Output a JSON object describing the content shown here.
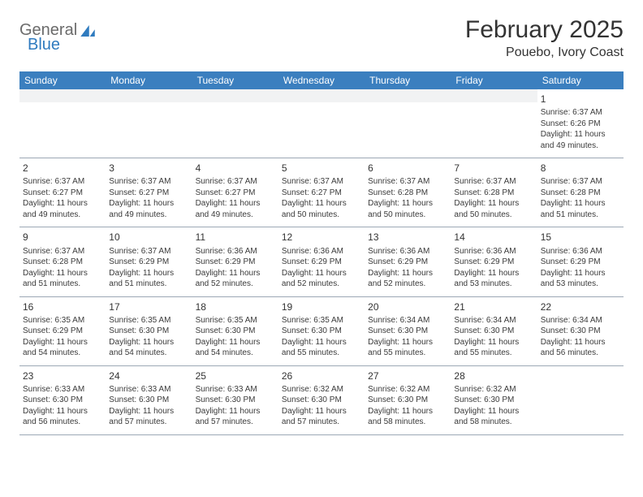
{
  "brand": {
    "word1": "General",
    "word2": "Blue"
  },
  "title": "February 2025",
  "location": "Pouebo, Ivory Coast",
  "colors": {
    "header_bg": "#3b7fbf",
    "header_text": "#ffffff",
    "border": "#9ca8b5",
    "blank_bg": "#f1f2f3",
    "text": "#333333"
  },
  "day_names": [
    "Sunday",
    "Monday",
    "Tuesday",
    "Wednesday",
    "Thursday",
    "Friday",
    "Saturday"
  ],
  "weeks": [
    [
      null,
      null,
      null,
      null,
      null,
      null,
      {
        "n": "1",
        "sunrise": "6:37 AM",
        "sunset": "6:26 PM",
        "day_h": 11,
        "day_m": 49
      }
    ],
    [
      {
        "n": "2",
        "sunrise": "6:37 AM",
        "sunset": "6:27 PM",
        "day_h": 11,
        "day_m": 49
      },
      {
        "n": "3",
        "sunrise": "6:37 AM",
        "sunset": "6:27 PM",
        "day_h": 11,
        "day_m": 49
      },
      {
        "n": "4",
        "sunrise": "6:37 AM",
        "sunset": "6:27 PM",
        "day_h": 11,
        "day_m": 49
      },
      {
        "n": "5",
        "sunrise": "6:37 AM",
        "sunset": "6:27 PM",
        "day_h": 11,
        "day_m": 50
      },
      {
        "n": "6",
        "sunrise": "6:37 AM",
        "sunset": "6:28 PM",
        "day_h": 11,
        "day_m": 50
      },
      {
        "n": "7",
        "sunrise": "6:37 AM",
        "sunset": "6:28 PM",
        "day_h": 11,
        "day_m": 50
      },
      {
        "n": "8",
        "sunrise": "6:37 AM",
        "sunset": "6:28 PM",
        "day_h": 11,
        "day_m": 51
      }
    ],
    [
      {
        "n": "9",
        "sunrise": "6:37 AM",
        "sunset": "6:28 PM",
        "day_h": 11,
        "day_m": 51
      },
      {
        "n": "10",
        "sunrise": "6:37 AM",
        "sunset": "6:29 PM",
        "day_h": 11,
        "day_m": 51
      },
      {
        "n": "11",
        "sunrise": "6:36 AM",
        "sunset": "6:29 PM",
        "day_h": 11,
        "day_m": 52
      },
      {
        "n": "12",
        "sunrise": "6:36 AM",
        "sunset": "6:29 PM",
        "day_h": 11,
        "day_m": 52
      },
      {
        "n": "13",
        "sunrise": "6:36 AM",
        "sunset": "6:29 PM",
        "day_h": 11,
        "day_m": 52
      },
      {
        "n": "14",
        "sunrise": "6:36 AM",
        "sunset": "6:29 PM",
        "day_h": 11,
        "day_m": 53
      },
      {
        "n": "15",
        "sunrise": "6:36 AM",
        "sunset": "6:29 PM",
        "day_h": 11,
        "day_m": 53
      }
    ],
    [
      {
        "n": "16",
        "sunrise": "6:35 AM",
        "sunset": "6:29 PM",
        "day_h": 11,
        "day_m": 54
      },
      {
        "n": "17",
        "sunrise": "6:35 AM",
        "sunset": "6:30 PM",
        "day_h": 11,
        "day_m": 54
      },
      {
        "n": "18",
        "sunrise": "6:35 AM",
        "sunset": "6:30 PM",
        "day_h": 11,
        "day_m": 54
      },
      {
        "n": "19",
        "sunrise": "6:35 AM",
        "sunset": "6:30 PM",
        "day_h": 11,
        "day_m": 55
      },
      {
        "n": "20",
        "sunrise": "6:34 AM",
        "sunset": "6:30 PM",
        "day_h": 11,
        "day_m": 55
      },
      {
        "n": "21",
        "sunrise": "6:34 AM",
        "sunset": "6:30 PM",
        "day_h": 11,
        "day_m": 55
      },
      {
        "n": "22",
        "sunrise": "6:34 AM",
        "sunset": "6:30 PM",
        "day_h": 11,
        "day_m": 56
      }
    ],
    [
      {
        "n": "23",
        "sunrise": "6:33 AM",
        "sunset": "6:30 PM",
        "day_h": 11,
        "day_m": 56
      },
      {
        "n": "24",
        "sunrise": "6:33 AM",
        "sunset": "6:30 PM",
        "day_h": 11,
        "day_m": 57
      },
      {
        "n": "25",
        "sunrise": "6:33 AM",
        "sunset": "6:30 PM",
        "day_h": 11,
        "day_m": 57
      },
      {
        "n": "26",
        "sunrise": "6:32 AM",
        "sunset": "6:30 PM",
        "day_h": 11,
        "day_m": 57
      },
      {
        "n": "27",
        "sunrise": "6:32 AM",
        "sunset": "6:30 PM",
        "day_h": 11,
        "day_m": 58
      },
      {
        "n": "28",
        "sunrise": "6:32 AM",
        "sunset": "6:30 PM",
        "day_h": 11,
        "day_m": 58
      },
      null
    ]
  ]
}
